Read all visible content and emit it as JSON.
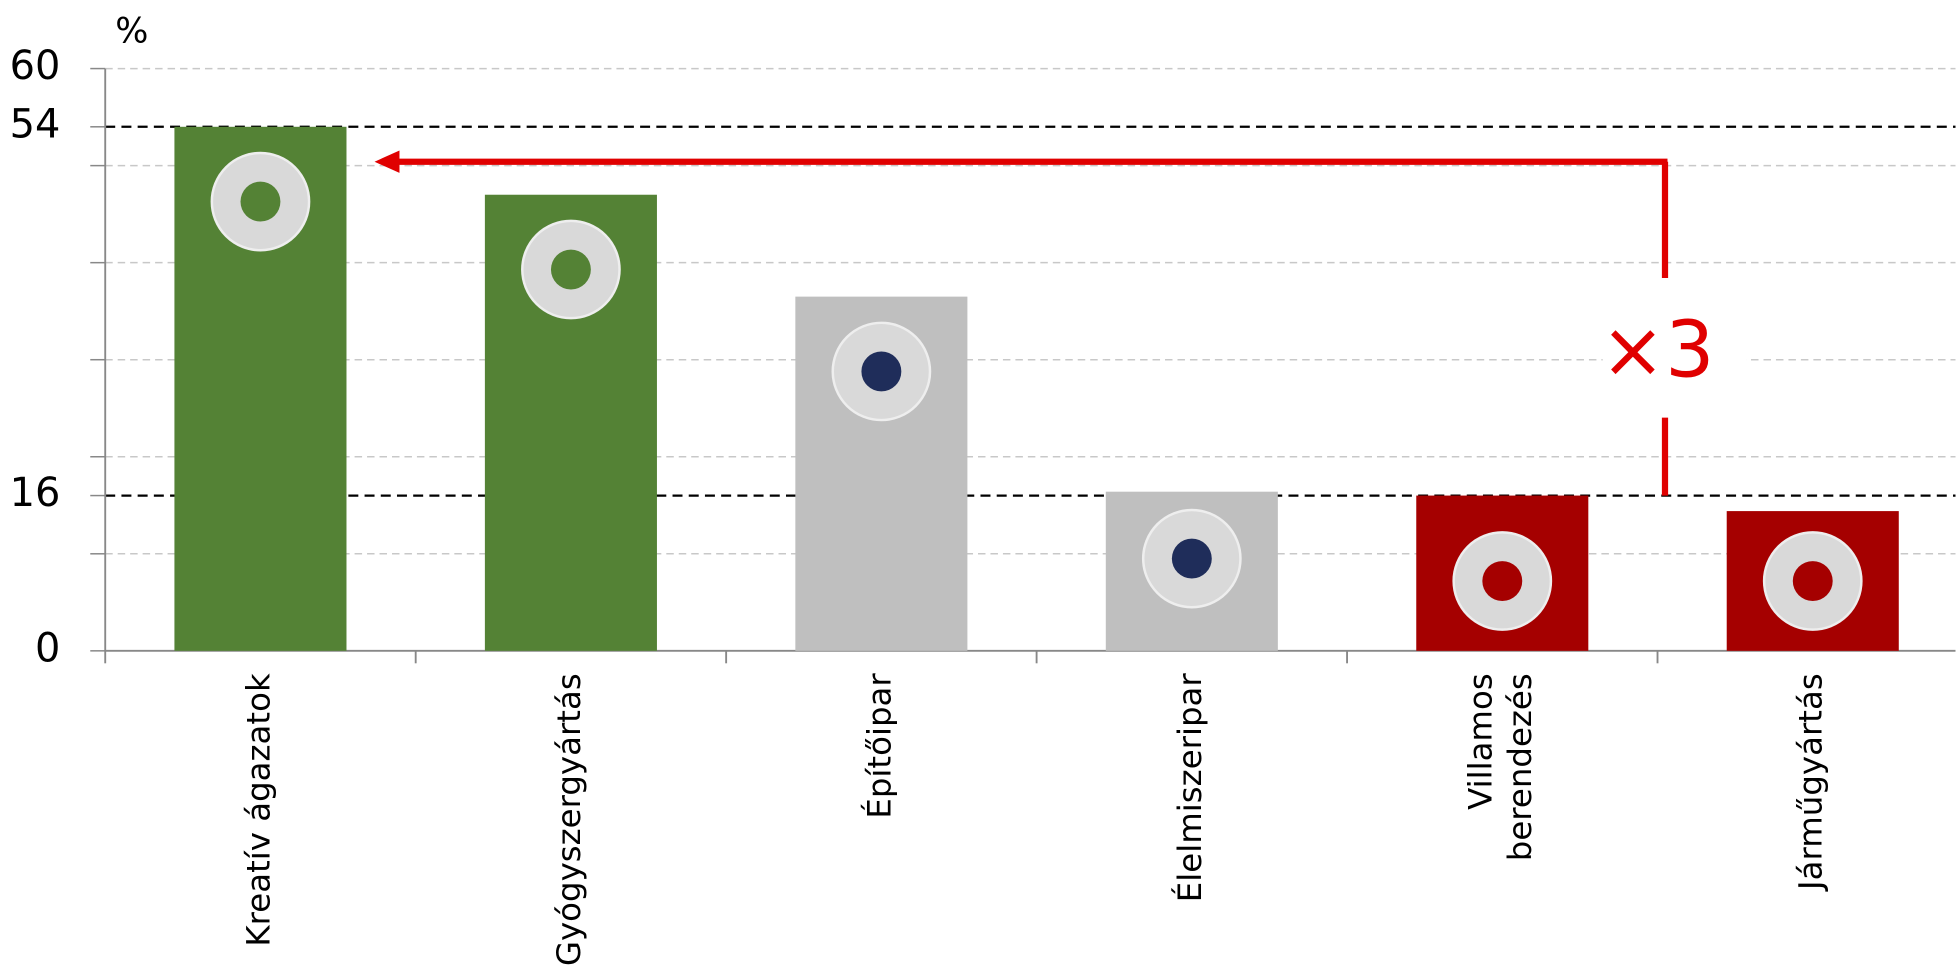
{
  "chart_data": {
    "type": "bar",
    "unit_label": "%",
    "annotation": "×3",
    "categories": [
      "Kreatív ágazatok",
      "Gyógyszergyártás",
      "Építőipar",
      "Élelmiszeripar",
      "Villamos berendezés",
      "Járműgyártás"
    ],
    "values": [
      54,
      47,
      36.5,
      16.4,
      16,
      14.4
    ],
    "colors": [
      "#548235",
      "#548235",
      "#bfbfbf",
      "#bfbfbf",
      "#a50000",
      "#a50000"
    ],
    "ylim": [
      0,
      60
    ],
    "yticks": [
      0,
      16,
      54,
      60
    ],
    "minor_yticks": [
      10,
      20,
      30,
      40,
      50
    ],
    "grid": true
  }
}
